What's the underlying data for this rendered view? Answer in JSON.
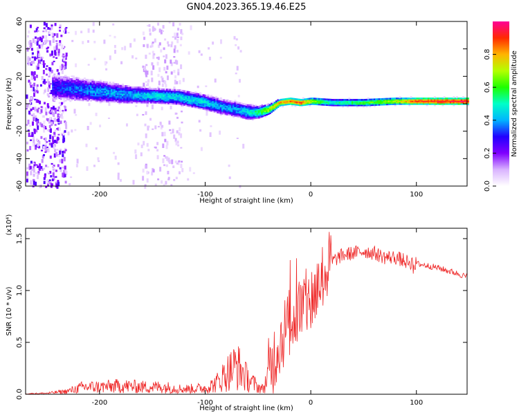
{
  "title": "GN04.2023.365.19.46.E25",
  "chart_data": [
    {
      "type": "heatmap",
      "xlabel": "Height of straight line (km)",
      "ylabel": "Frequency (Hz)",
      "xlim": [
        -270,
        148
      ],
      "ylim": [
        -60,
        60
      ],
      "xticks": [
        -200,
        -100,
        0,
        100
      ],
      "yticks": [
        -60,
        -40,
        -20,
        0,
        20,
        40,
        60
      ],
      "colorbar": {
        "label": "Normalized spectral amplitude",
        "range": [
          0,
          1
        ],
        "ticks": [
          0.0,
          0.2,
          0.4,
          0.6,
          0.8
        ],
        "colormap": [
          "#ffffff",
          "#d9b3ff",
          "#8000ff",
          "#2200ff",
          "#00b4ff",
          "#00ffc8",
          "#1eff00",
          "#b4ff00",
          "#ffb400",
          "#ff2a00",
          "#ff0096"
        ]
      },
      "ridge": {
        "x": [
          -245,
          -225,
          -200,
          -175,
          -150,
          -125,
          -100,
          -85,
          -70,
          -60,
          -50,
          -40,
          -30,
          -20,
          -10,
          0,
          20,
          50,
          80,
          100,
          148
        ],
        "center_hz": [
          12,
          11,
          9,
          7,
          6,
          5,
          1,
          -2,
          -4,
          -6,
          -6,
          -4,
          1,
          2,
          1,
          2,
          1,
          1,
          2,
          2,
          2
        ],
        "halfwidth_hz": [
          9,
          9,
          8,
          7,
          6,
          6,
          6,
          6,
          6,
          6,
          5,
          4,
          3,
          3,
          3,
          3,
          3,
          3,
          3,
          3,
          3
        ],
        "peak_amplitude": [
          0.3,
          0.35,
          0.4,
          0.4,
          0.45,
          0.45,
          0.45,
          0.4,
          0.4,
          0.45,
          0.55,
          0.7,
          0.8,
          0.85,
          0.9,
          0.7,
          0.5,
          0.6,
          0.7,
          0.9,
          0.95
        ]
      }
    },
    {
      "type": "line",
      "xlabel": "Height of straight line (km)",
      "ylabel": "SNR (10 * v/v)",
      "scale_label": "(x10⁴)",
      "xlim": [
        -270,
        148
      ],
      "ylim": [
        0,
        1.6
      ],
      "xticks": [
        -200,
        -100,
        0,
        100
      ],
      "yticks": [
        0.0,
        0.5,
        1.0,
        1.5
      ],
      "color": "#ee2222",
      "series": [
        {
          "x": [
            -270,
            -250,
            -230,
            -215,
            -200,
            -180,
            -160,
            -140,
            -120,
            -100,
            -90,
            -80,
            -70,
            -60,
            -50,
            -45,
            -40,
            -35,
            -30,
            -25,
            -20,
            -15,
            -10,
            -5,
            0,
            5,
            10,
            15,
            20,
            30,
            40,
            50,
            60,
            70,
            80,
            90,
            100,
            110,
            120,
            130,
            140,
            148
          ],
          "y": [
            0.005,
            0.01,
            0.03,
            0.07,
            0.07,
            0.08,
            0.07,
            0.07,
            0.05,
            0.06,
            0.1,
            0.2,
            0.28,
            0.15,
            0.07,
            0.05,
            0.2,
            0.35,
            0.5,
            0.6,
            0.7,
            0.75,
            0.82,
            0.86,
            0.9,
            1.0,
            1.12,
            1.2,
            1.28,
            1.34,
            1.36,
            1.38,
            1.36,
            1.32,
            1.32,
            1.28,
            1.26,
            1.24,
            1.22,
            1.19,
            1.16,
            1.13
          ]
        }
      ]
    }
  ]
}
